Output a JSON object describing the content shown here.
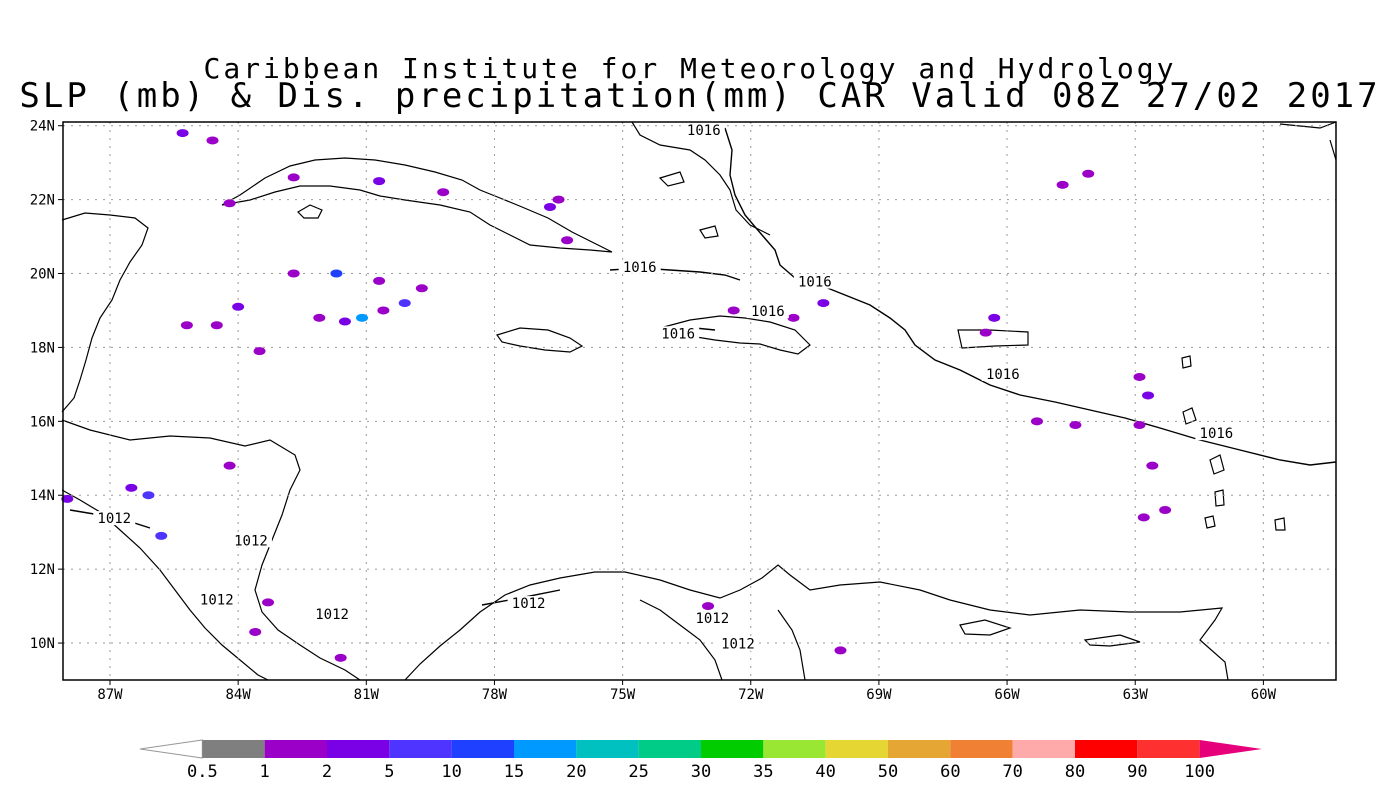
{
  "titles": {
    "line1": "Caribbean Institute for Meteorology and Hydrology",
    "line2": "SLP (mb) & Dis. precipitation(mm) CAR Valid 08Z 27/02 2017"
  },
  "map": {
    "lon_range": [
      -88.1,
      -58.3
    ],
    "lat_range": [
      9.0,
      24.1
    ],
    "lat_ticks": [
      {
        "value": 24,
        "label": "24N"
      },
      {
        "value": 22,
        "label": "22N"
      },
      {
        "value": 20,
        "label": "20N"
      },
      {
        "value": 18,
        "label": "18N"
      },
      {
        "value": 16,
        "label": "16N"
      },
      {
        "value": 14,
        "label": "14N"
      },
      {
        "value": 12,
        "label": "12N"
      },
      {
        "value": 10,
        "label": "10N"
      }
    ],
    "lon_ticks": [
      {
        "value": -87,
        "label": "87W"
      },
      {
        "value": -84,
        "label": "84W"
      },
      {
        "value": -81,
        "label": "81W"
      },
      {
        "value": -78,
        "label": "78W"
      },
      {
        "value": -75,
        "label": "75W"
      },
      {
        "value": -72,
        "label": "72W"
      },
      {
        "value": -69,
        "label": "69W"
      },
      {
        "value": -66,
        "label": "66W"
      },
      {
        "value": -63,
        "label": "63W"
      },
      {
        "value": -60,
        "label": "60W"
      }
    ],
    "grid": true,
    "contour_labels": [
      {
        "text": "1016",
        "lon": -73.1,
        "lat": 23.8
      },
      {
        "text": "1016",
        "lon": -74.6,
        "lat": 20.1
      },
      {
        "text": "1016",
        "lon": -71.6,
        "lat": 18.9
      },
      {
        "text": "1016",
        "lon": -73.7,
        "lat": 18.3
      },
      {
        "text": "1016",
        "lon": -70.5,
        "lat": 19.7
      },
      {
        "text": "1016",
        "lon": -66.1,
        "lat": 17.2
      },
      {
        "text": "1016",
        "lon": -61.1,
        "lat": 15.6
      },
      {
        "text": "1012",
        "lon": -86.9,
        "lat": 13.3
      },
      {
        "text": "1012",
        "lon": -83.7,
        "lat": 12.7
      },
      {
        "text": "1012",
        "lon": -84.5,
        "lat": 11.1
      },
      {
        "text": "1012",
        "lon": -81.8,
        "lat": 10.7
      },
      {
        "text": "1012",
        "lon": -77.2,
        "lat": 11.0
      },
      {
        "text": "1012",
        "lon": -72.9,
        "lat": 10.6
      },
      {
        "text": "1012",
        "lon": -72.3,
        "lat": 9.9
      }
    ],
    "precip_cells": [
      {
        "lon": -85.3,
        "lat": 23.8,
        "c": 3
      },
      {
        "lon": -84.6,
        "lat": 23.6,
        "c": 2
      },
      {
        "lon": -84.2,
        "lat": 21.9,
        "c": 2
      },
      {
        "lon": -82.7,
        "lat": 22.6,
        "c": 2
      },
      {
        "lon": -80.7,
        "lat": 22.5,
        "c": 3
      },
      {
        "lon": -79.2,
        "lat": 22.2,
        "c": 2
      },
      {
        "lon": -76.7,
        "lat": 21.8,
        "c": 3
      },
      {
        "lon": -76.5,
        "lat": 22.0,
        "c": 2
      },
      {
        "lon": -76.3,
        "lat": 20.9,
        "c": 2
      },
      {
        "lon": -82.7,
        "lat": 20.0,
        "c": 2
      },
      {
        "lon": -81.7,
        "lat": 20.0,
        "c": 5
      },
      {
        "lon": -80.7,
        "lat": 19.8,
        "c": 2
      },
      {
        "lon": -79.7,
        "lat": 19.6,
        "c": 2
      },
      {
        "lon": -80.1,
        "lat": 19.2,
        "c": 4
      },
      {
        "lon": -80.6,
        "lat": 19.0,
        "c": 2
      },
      {
        "lon": -81.1,
        "lat": 18.8,
        "c": 6
      },
      {
        "lon": -81.5,
        "lat": 18.7,
        "c": 3
      },
      {
        "lon": -82.1,
        "lat": 18.8,
        "c": 2
      },
      {
        "lon": -84.0,
        "lat": 19.1,
        "c": 3
      },
      {
        "lon": -84.5,
        "lat": 18.6,
        "c": 2
      },
      {
        "lon": -83.5,
        "lat": 17.9,
        "c": 2
      },
      {
        "lon": -85.2,
        "lat": 18.6,
        "c": 2
      },
      {
        "lon": -70.3,
        "lat": 19.2,
        "c": 3
      },
      {
        "lon": -71.0,
        "lat": 18.8,
        "c": 2
      },
      {
        "lon": -72.4,
        "lat": 19.0,
        "c": 2
      },
      {
        "lon": -66.3,
        "lat": 18.8,
        "c": 3
      },
      {
        "lon": -66.5,
        "lat": 18.4,
        "c": 2
      },
      {
        "lon": -64.7,
        "lat": 22.4,
        "c": 2
      },
      {
        "lon": -64.1,
        "lat": 22.7,
        "c": 2
      },
      {
        "lon": -62.9,
        "lat": 17.2,
        "c": 2
      },
      {
        "lon": -62.7,
        "lat": 16.7,
        "c": 3
      },
      {
        "lon": -62.9,
        "lat": 15.9,
        "c": 2
      },
      {
        "lon": -62.6,
        "lat": 14.8,
        "c": 2
      },
      {
        "lon": -62.8,
        "lat": 13.4,
        "c": 2
      },
      {
        "lon": -62.3,
        "lat": 13.6,
        "c": 2
      },
      {
        "lon": -65.3,
        "lat": 16.0,
        "c": 2
      },
      {
        "lon": -64.4,
        "lat": 15.9,
        "c": 2
      },
      {
        "lon": -86.1,
        "lat": 14.0,
        "c": 4
      },
      {
        "lon": -86.5,
        "lat": 14.2,
        "c": 3
      },
      {
        "lon": -85.8,
        "lat": 12.9,
        "c": 4
      },
      {
        "lon": -84.2,
        "lat": 14.8,
        "c": 2
      },
      {
        "lon": -88.0,
        "lat": 13.9,
        "c": 3
      },
      {
        "lon": -83.3,
        "lat": 11.1,
        "c": 2
      },
      {
        "lon": -81.6,
        "lat": 9.6,
        "c": 2
      },
      {
        "lon": -83.6,
        "lat": 10.3,
        "c": 2
      },
      {
        "lon": -73.0,
        "lat": 11.0,
        "c": 2
      },
      {
        "lon": -69.9,
        "lat": 9.8,
        "c": 2
      }
    ]
  },
  "colorbar": {
    "tick_labels": [
      "0.5",
      "1",
      "2",
      "5",
      "10",
      "15",
      "20",
      "25",
      "30",
      "35",
      "40",
      "50",
      "60",
      "70",
      "80",
      "90",
      "100"
    ],
    "colors": [
      "#ffffff",
      "#7f7f7f",
      "#9a00c8",
      "#7a00e6",
      "#4f33ff",
      "#2040ff",
      "#0099ff",
      "#00c0c0",
      "#00cc88",
      "#00cc00",
      "#99e633",
      "#e6d633",
      "#e6a633",
      "#f08033",
      "#ffaaaa",
      "#ff0000",
      "#ff3030",
      "#e6007a"
    ]
  }
}
